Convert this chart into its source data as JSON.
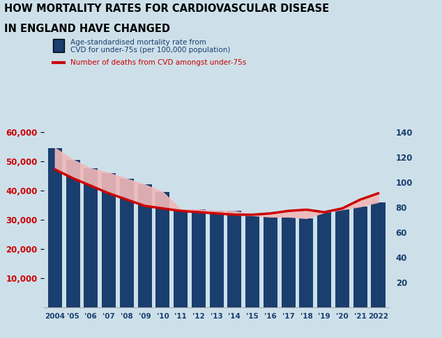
{
  "years": [
    2004,
    2005,
    2006,
    2007,
    2008,
    2009,
    2010,
    2011,
    2012,
    2013,
    2014,
    2015,
    2016,
    2017,
    2018,
    2019,
    2020,
    2021,
    2022
  ],
  "deaths_total": [
    54500,
    50500,
    47500,
    46000,
    44000,
    42000,
    39500,
    33500,
    33500,
    33000,
    33000,
    31500,
    31000,
    31000,
    30500,
    32500,
    33500,
    34500,
    36000
  ],
  "mortality_rate": [
    110,
    103,
    97,
    91,
    86,
    81,
    79,
    77,
    76,
    75,
    74,
    74,
    75,
    77,
    78,
    76,
    79,
    86,
    91
  ],
  "bar_color": "#1a3e6e",
  "line_color": "#cc0000",
  "fill_color": "#f0b8b8",
  "background_color": "#cde0ea",
  "title_line1": "HOW MORTALITY RATES FOR CARDIOVASCULAR DISEASE",
  "title_line2": "IN ENGLAND HAVE CHANGED",
  "legend1_color": "#1a3e6e",
  "legend1_label": "Age-standardised mortality rate from\nCVD for under-75s (per 100,000 population)",
  "legend2_color": "#cc0000",
  "legend2_label": "Number of deaths from CVD amongst under-75s",
  "left_tick_color": "#cc0000",
  "right_tick_color": "#1a3e6e",
  "xtick_color": "#1a3e6e",
  "left_ylim": [
    0,
    60000
  ],
  "right_ylim": [
    0,
    140
  ],
  "left_yticks": [
    10000,
    20000,
    30000,
    40000,
    50000,
    60000
  ],
  "right_yticks": [
    20,
    40,
    60,
    80,
    100,
    120,
    140
  ],
  "left_ytick_labels": [
    "10,000",
    "20,000",
    "30,000",
    "40,000",
    "50,000",
    "60,000"
  ],
  "right_ytick_labels": [
    "20",
    "40",
    "60",
    "80",
    "100",
    "120",
    "140"
  ]
}
